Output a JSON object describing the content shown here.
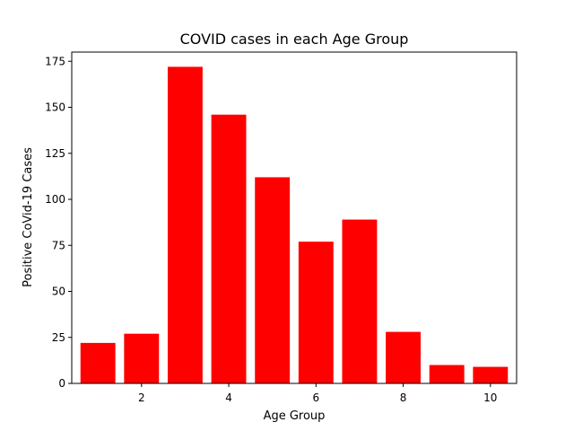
{
  "chart_data": {
    "type": "bar",
    "title": "COVID cases in each Age Group",
    "xlabel": "Age Group",
    "ylabel": "Positive CoVid-19 Cases",
    "x": [
      1,
      2,
      3,
      4,
      5,
      6,
      7,
      8,
      9,
      10
    ],
    "values": [
      22,
      27,
      172,
      146,
      112,
      77,
      89,
      28,
      10,
      9
    ],
    "bar_color": "#ff0000",
    "xlim": [
      0.4,
      10.6
    ],
    "ylim": [
      0,
      180
    ],
    "xticks": [
      "2",
      "4",
      "6",
      "8",
      "10"
    ],
    "yticks": [
      "0",
      "25",
      "50",
      "75",
      "100",
      "125",
      "150",
      "175"
    ],
    "grid": false,
    "legend": "none"
  }
}
